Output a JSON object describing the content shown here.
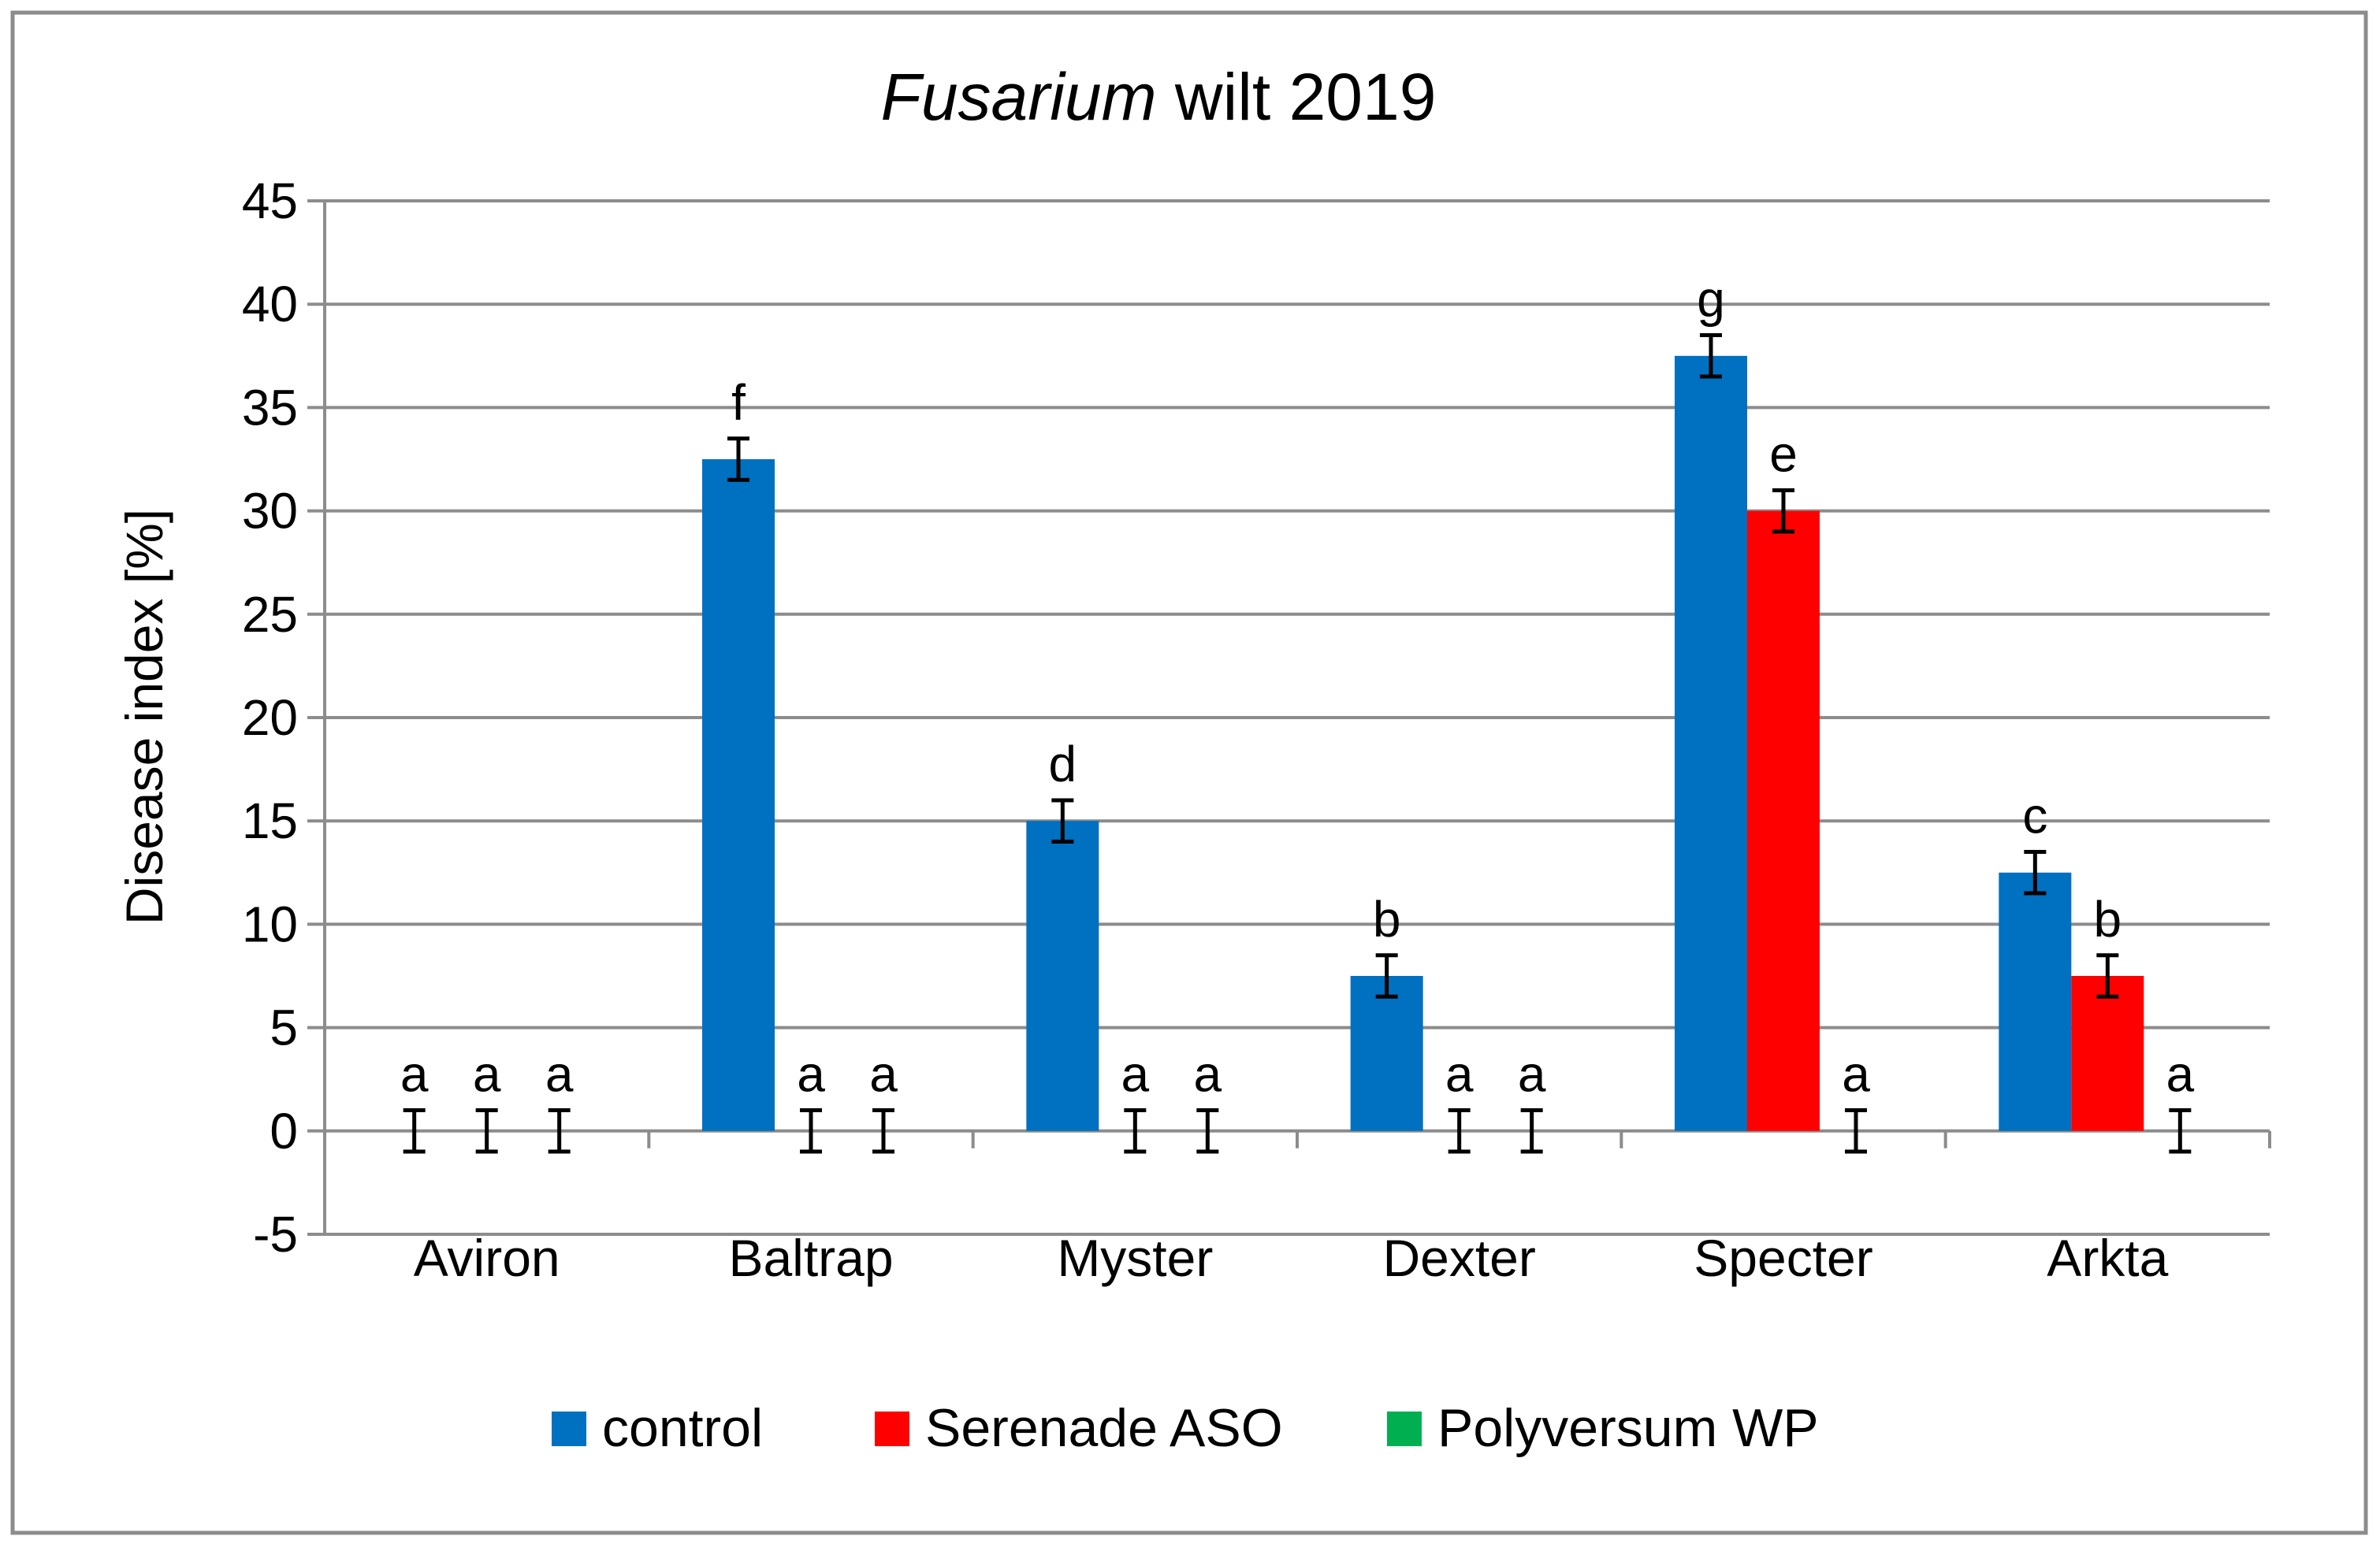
{
  "chart_data": {
    "type": "bar",
    "title": {
      "italic": "Fusarium",
      "rest": " wilt 2019"
    },
    "ylabel": "Disease index [%]",
    "xlabel": "",
    "ylim": [
      -5,
      45
    ],
    "yticks": [
      -5,
      0,
      5,
      10,
      15,
      20,
      25,
      30,
      35,
      40,
      45
    ],
    "grid": true,
    "legend_position": "bottom",
    "categories": [
      "Aviron",
      "Baltrap",
      "Myster",
      "Dexter",
      "Specter",
      "Arkta"
    ],
    "series": [
      {
        "name": "control",
        "color": "#0070C0",
        "values": [
          0,
          32.5,
          15,
          7.5,
          37.5,
          12.5
        ],
        "errors": [
          1,
          1,
          1,
          1,
          1,
          1
        ],
        "letters": [
          "a",
          "f",
          "d",
          "b",
          "g",
          "c"
        ]
      },
      {
        "name": "Serenade ASO",
        "color": "#FF0000",
        "values": [
          0,
          0,
          0,
          0,
          30,
          7.5
        ],
        "errors": [
          1,
          1,
          1,
          1,
          1,
          1
        ],
        "letters": [
          "a",
          "a",
          "a",
          "a",
          "e",
          "b"
        ]
      },
      {
        "name": "Polyversum WP",
        "color": "#00B050",
        "values": [
          0,
          0,
          0,
          0,
          0,
          0
        ],
        "errors": [
          1,
          1,
          1,
          1,
          1,
          1
        ],
        "letters": [
          "a",
          "a",
          "a",
          "a",
          "a",
          "a"
        ]
      }
    ]
  }
}
